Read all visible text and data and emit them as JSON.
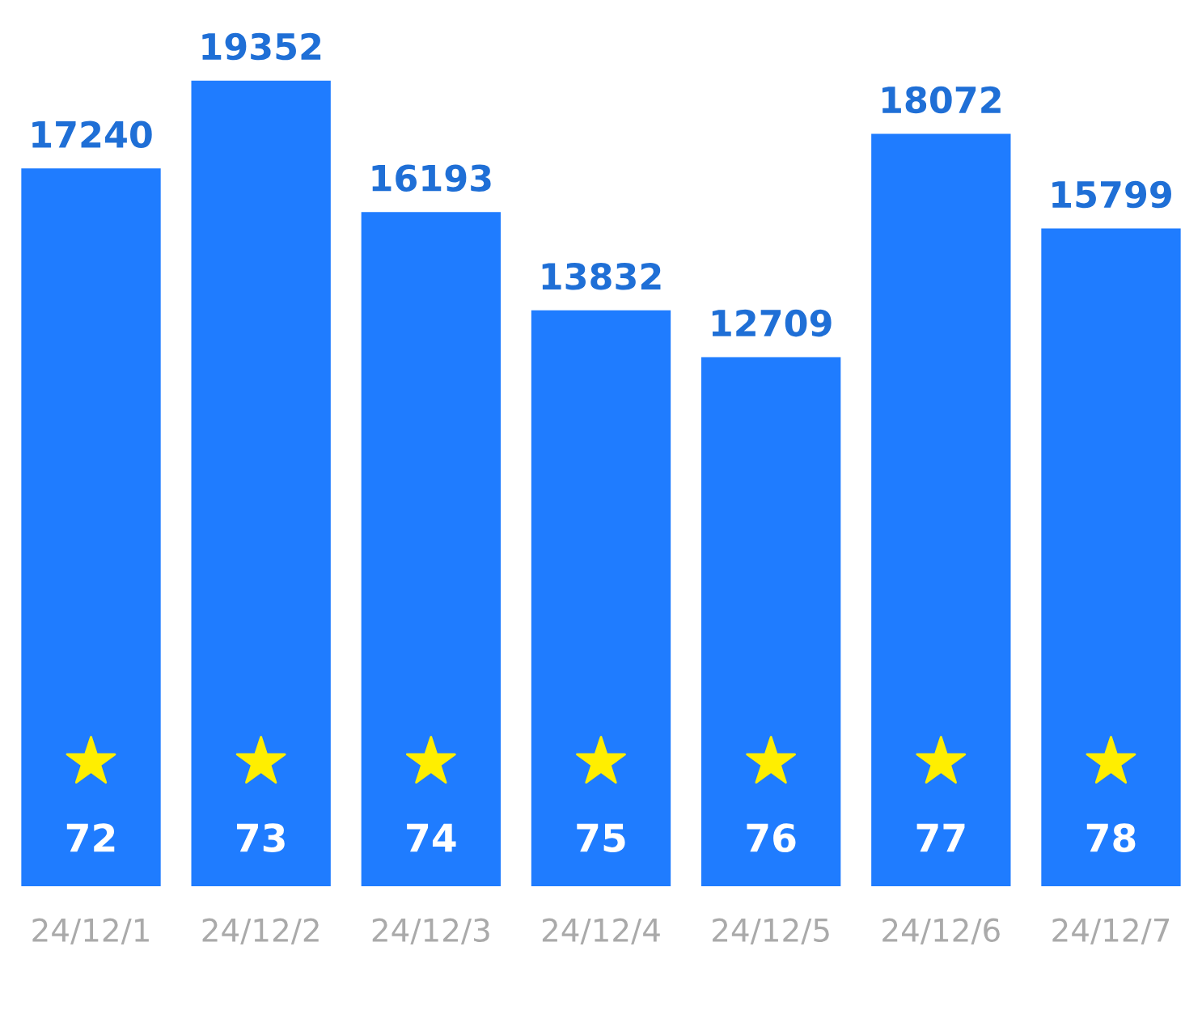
{
  "chart_data": {
    "type": "bar",
    "categories": [
      "24/12/1",
      "24/12/2",
      "24/12/3",
      "24/12/4",
      "24/12/5",
      "24/12/6",
      "24/12/7"
    ],
    "values": [
      17240,
      19352,
      16193,
      13832,
      12709,
      18072,
      15799
    ],
    "color": "#1f7cff",
    "data_labels": true,
    "grid": false,
    "legend": false,
    "tick_labels": "x",
    "annotations": [
      "72",
      "73",
      "74",
      "75",
      "76",
      "77",
      "78"
    ]
  }
}
